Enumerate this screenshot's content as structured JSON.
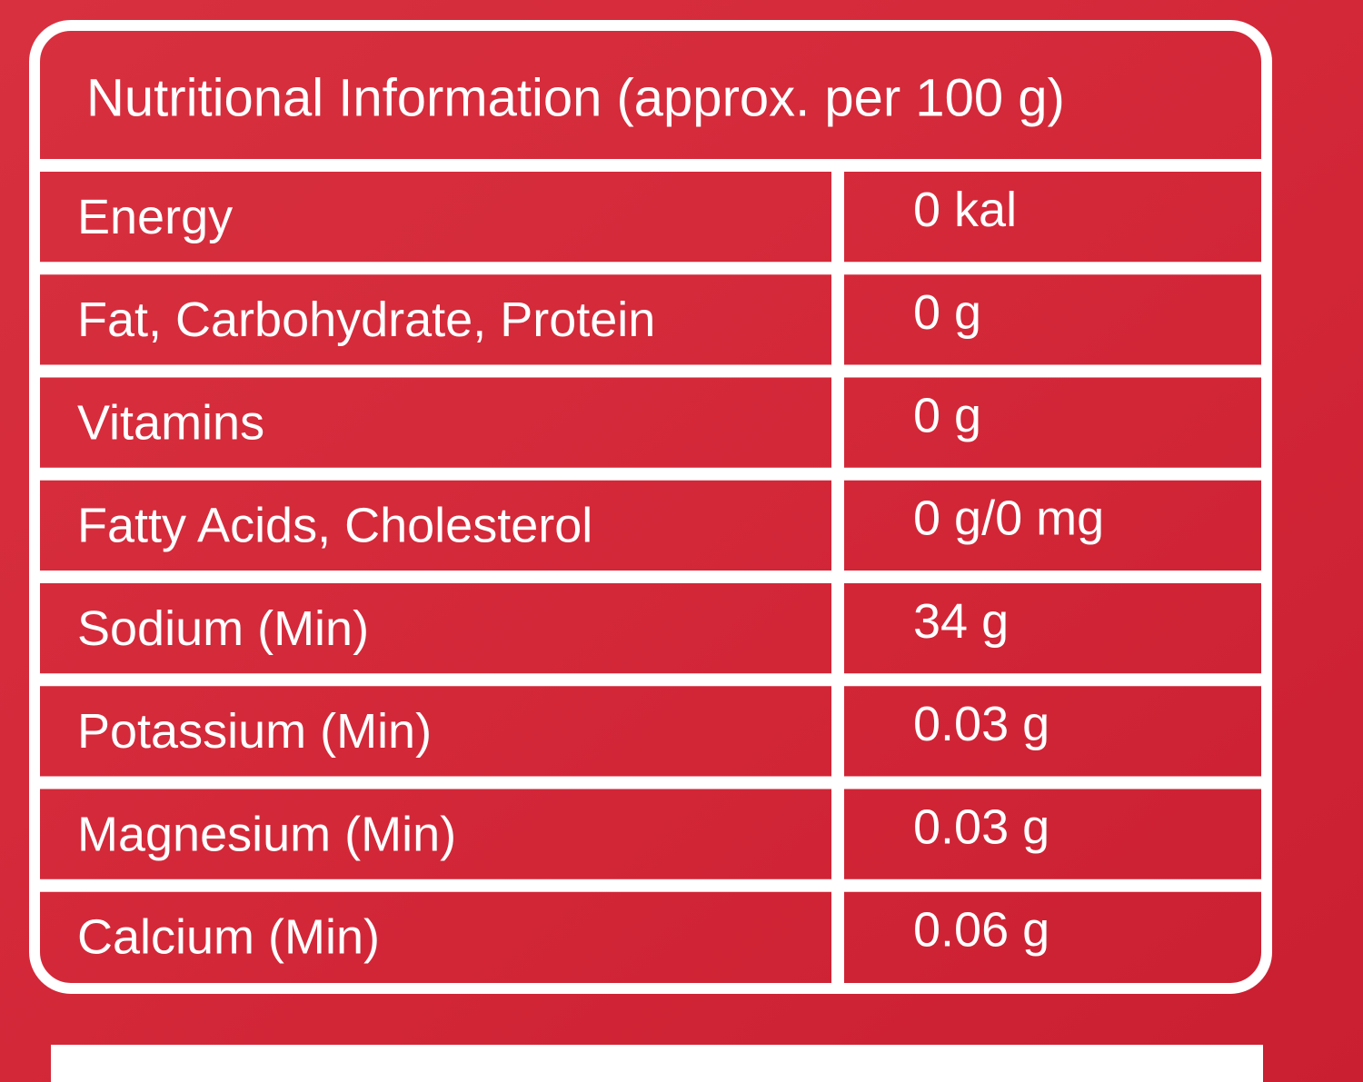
{
  "table": {
    "title": "Nutritional Information (approx. per 100 g)",
    "rows": [
      [
        "Energy",
        "0 kal"
      ],
      [
        "Fat, Carbohydrate, Protein",
        "0 g"
      ],
      [
        "Vitamins",
        "0 g"
      ],
      [
        "Fatty Acids, Cholesterol",
        "0 g/0 mg"
      ],
      [
        "Sodium (Min)",
        "34 g"
      ],
      [
        "Potassium (Min)",
        "0.03 g"
      ],
      [
        "Magnesium (Min)",
        "0.03 g"
      ],
      [
        "Calcium (Min)",
        "0.06 g"
      ]
    ]
  }
}
